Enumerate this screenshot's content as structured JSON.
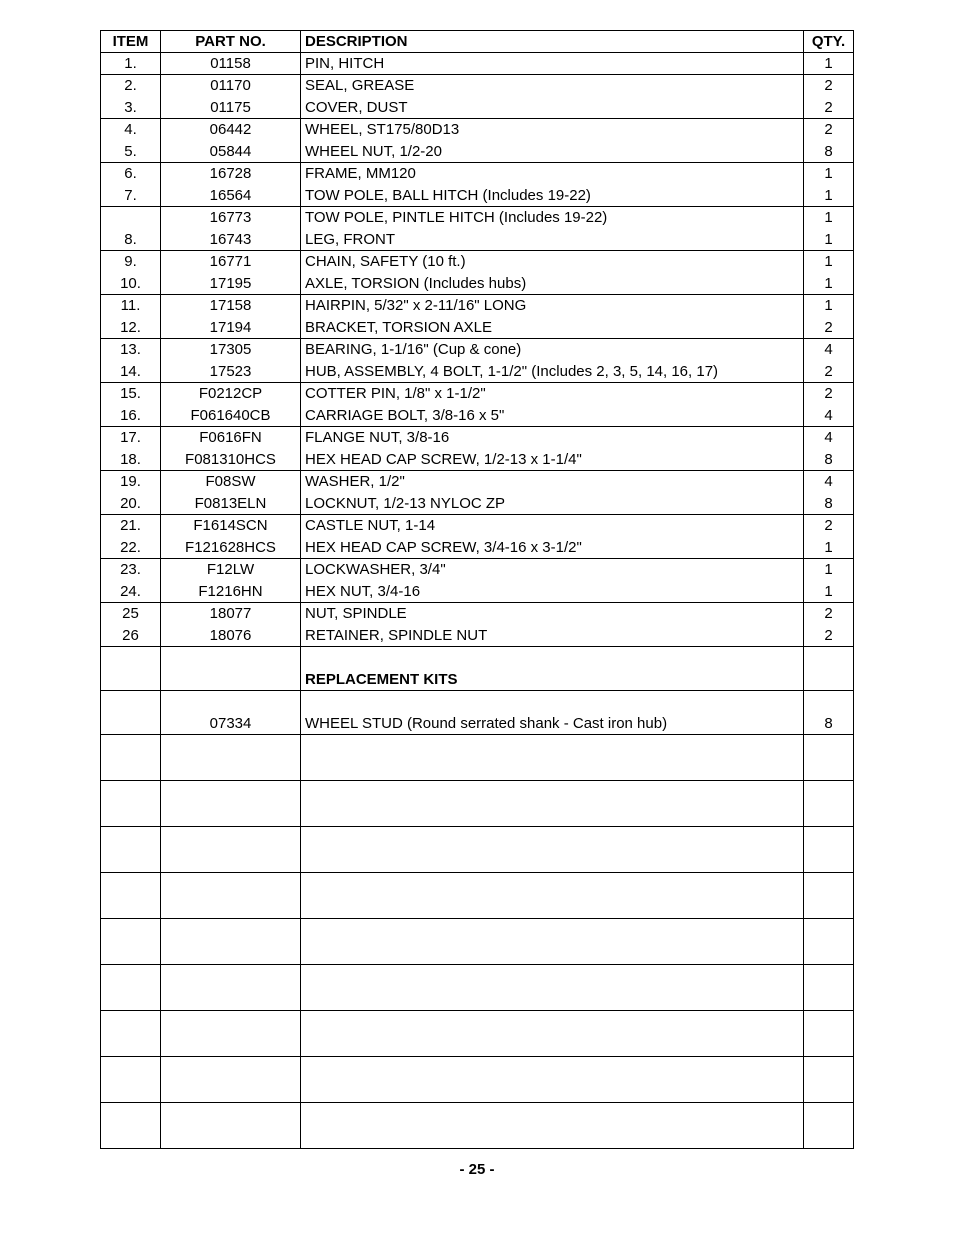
{
  "headers": {
    "item": "ITEM",
    "partno": "PART NO.",
    "desc": "DESCRIPTION",
    "qty": "QTY."
  },
  "rows": [
    {
      "item": "1.",
      "partno": "01158",
      "desc": "PIN, HITCH",
      "qty": "1",
      "underlined": true
    },
    {
      "item": "2.",
      "partno": "01170",
      "desc": "SEAL, GREASE",
      "qty": "2",
      "underlined": false
    },
    {
      "item": "3.",
      "partno": "01175",
      "desc": "COVER, DUST",
      "qty": "2",
      "underlined": true
    },
    {
      "item": "4.",
      "partno": "06442",
      "desc": "WHEEL, ST175/80D13",
      "qty": "2",
      "underlined": false
    },
    {
      "item": "5.",
      "partno": "05844",
      "desc": "WHEEL NUT, 1/2-20",
      "qty": "8",
      "underlined": true
    },
    {
      "item": "6.",
      "partno": "16728",
      "desc": "FRAME, MM120",
      "qty": "1",
      "underlined": false
    },
    {
      "item": "7.",
      "partno": "16564",
      "desc": "TOW POLE, BALL HITCH (Includes 19-22)",
      "qty": "1",
      "underlined": true
    },
    {
      "item": "",
      "partno": "16773",
      "desc": "TOW POLE, PINTLE HITCH (Includes 19-22)",
      "qty": "1",
      "underlined": false
    },
    {
      "item": "8.",
      "partno": "16743",
      "desc": "LEG, FRONT",
      "qty": "1",
      "underlined": true
    },
    {
      "item": "9.",
      "partno": "16771",
      "desc": "CHAIN, SAFETY (10 ft.)",
      "qty": "1",
      "underlined": false
    },
    {
      "item": "10.",
      "partno": "17195",
      "desc": "AXLE, TORSION (Includes hubs)",
      "qty": "1",
      "underlined": true
    },
    {
      "item": "11.",
      "partno": "17158",
      "desc": "HAIRPIN, 5/32\" x 2-11/16\" LONG",
      "qty": "1",
      "underlined": false
    },
    {
      "item": "12.",
      "partno": "17194",
      "desc": "BRACKET, TORSION AXLE",
      "qty": "2",
      "underlined": true
    },
    {
      "item": "13.",
      "partno": "17305",
      "desc": "BEARING, 1-1/16\" (Cup & cone)",
      "qty": "4",
      "underlined": false
    },
    {
      "item": "14.",
      "partno": "17523",
      "desc": "HUB, ASSEMBLY, 4 BOLT, 1-1/2\" (Includes 2, 3, 5, 14, 16, 17)",
      "qty": "2",
      "underlined": true
    },
    {
      "item": "15.",
      "partno": "F0212CP",
      "desc": "COTTER PIN, 1/8\" x 1-1/2\"",
      "qty": "2",
      "underlined": false
    },
    {
      "item": "16.",
      "partno": "F061640CB",
      "desc": "CARRIAGE BOLT, 3/8-16 x 5\"",
      "qty": "4",
      "underlined": true
    },
    {
      "item": "17.",
      "partno": "F0616FN",
      "desc": "FLANGE NUT, 3/8-16",
      "qty": "4",
      "underlined": false
    },
    {
      "item": "18.",
      "partno": "F081310HCS",
      "desc": "HEX HEAD CAP SCREW, 1/2-13 x 1-1/4\"",
      "qty": "8",
      "underlined": true
    },
    {
      "item": "19.",
      "partno": "F08SW",
      "desc": "WASHER, 1/2\"",
      "qty": "4",
      "underlined": false
    },
    {
      "item": "20.",
      "partno": "F0813ELN",
      "desc": "LOCKNUT, 1/2-13 NYLOC ZP",
      "qty": "8",
      "underlined": true
    },
    {
      "item": "21.",
      "partno": "F1614SCN",
      "desc": "CASTLE NUT, 1-14",
      "qty": "2",
      "underlined": false
    },
    {
      "item": "22.",
      "partno": "F121628HCS",
      "desc": "HEX HEAD CAP SCREW, 3/4-16 x 3-1/2\"",
      "qty": "1",
      "underlined": true
    },
    {
      "item": "23.",
      "partno": "F12LW",
      "desc": "LOCKWASHER, 3/4\"",
      "qty": "1",
      "underlined": false
    },
    {
      "item": "24.",
      "partno": "F1216HN",
      "desc": "HEX NUT, 3/4-16",
      "qty": "1",
      "underlined": true
    },
    {
      "item": "25",
      "partno": "18077",
      "desc": "NUT, SPINDLE",
      "qty": "2",
      "underlined": false
    },
    {
      "item": "26",
      "partno": "18076",
      "desc": "RETAINER, SPINDLE NUT",
      "qty": "2",
      "underlined": true
    }
  ],
  "section_title": "REPLACEMENT KITS",
  "kit_rows": [
    {
      "item": "",
      "partno": "07334",
      "desc": "WHEEL STUD (Round serrated shank - Cast iron hub)",
      "qty": "8",
      "underlined": true
    }
  ],
  "page_number": "- 25 -",
  "empty_row_count": 9
}
